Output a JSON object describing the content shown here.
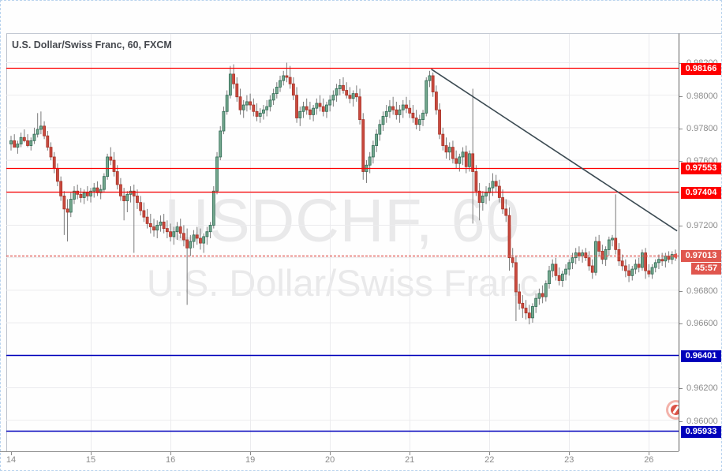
{
  "chart": {
    "title": "U.S. Dollar/Swiss Franc, 60, FXCM",
    "watermark_line1": "USDCHF, 60",
    "watermark_line2": "U.S. Dollar/Swiss Franc",
    "symbol": "USDCHF",
    "timeframe": "60",
    "provider": "FXCM"
  },
  "colors": {
    "bull_fill": "#74a78d",
    "bull_stroke": "#2e6a54",
    "bear_fill": "#c94a3f",
    "bear_stroke": "#a83327",
    "wick": "#7a7a7a",
    "grid": "#ebebee",
    "resistance": "#fe0000",
    "support": "#0000bb",
    "current": "#e0564e",
    "trendline": "#3b4a52",
    "watermark": "#e9e9ea"
  },
  "chart_data": {
    "type": "candlestick",
    "title": "U.S. Dollar/Swiss Franc, 60, FXCM",
    "price_scale": 0.0001,
    "y_axis": {
      "price_top": 0.98382,
      "price_bottom": 0.95809,
      "grid_step": 0.002,
      "ticks": [
        {
          "price": 0.982,
          "label": "0.98200"
        },
        {
          "price": 0.98,
          "label": "0.98000"
        },
        {
          "price": 0.978,
          "label": "0.97800"
        },
        {
          "price": 0.976,
          "label": "0.97600"
        },
        {
          "price": 0.972,
          "label": "0.97200"
        },
        {
          "price": 0.968,
          "label": "0.96800"
        },
        {
          "price": 0.966,
          "label": "0.96600"
        },
        {
          "price": 0.962,
          "label": "0.96200"
        },
        {
          "price": 0.96,
          "label": "0.96000"
        }
      ]
    },
    "x_axis": {
      "day_labels": [
        {
          "text": "14",
          "start": 0
        },
        {
          "text": "15",
          "start": 24
        },
        {
          "text": "16",
          "start": 48
        },
        {
          "text": "19",
          "start": 72
        },
        {
          "text": "20",
          "start": 96
        },
        {
          "text": "21",
          "start": 120
        },
        {
          "text": "22",
          "start": 144
        },
        {
          "text": "23",
          "start": 168
        },
        {
          "text": "26",
          "start": 192
        }
      ]
    },
    "levels": [
      {
        "price": 0.98166,
        "label": "0.98166",
        "type": "resistance",
        "line": "solid"
      },
      {
        "price": 0.97553,
        "label": "0.97553",
        "type": "resistance",
        "line": "solid"
      },
      {
        "price": 0.97404,
        "label": "0.97404",
        "type": "resistance",
        "line": "solid"
      },
      {
        "price": 0.97013,
        "label": "0.97013",
        "type": "current_price",
        "line": "dotted",
        "countdown": "45:57"
      },
      {
        "price": 0.96401,
        "label": "0.96401",
        "type": "support",
        "line": "solid"
      },
      {
        "price": 0.95933,
        "label": "0.95933",
        "type": "support",
        "line": "solid"
      }
    ],
    "trendline": {
      "from": {
        "index": 126.5,
        "price": 0.9816
      },
      "to": {
        "index": 200.5,
        "price": 0.97165
      }
    },
    "candles": [
      [
        9770,
        9775,
        9766,
        9772
      ],
      [
        9772,
        9776,
        9769,
        9768
      ],
      [
        9768,
        9772,
        9764,
        9770
      ],
      [
        9770,
        9777,
        9768,
        9774
      ],
      [
        9774,
        9779,
        9771,
        9772
      ],
      [
        9772,
        9776,
        9768,
        9769
      ],
      [
        9769,
        9774,
        9766,
        9772
      ],
      [
        9772,
        9780,
        9770,
        9776
      ],
      [
        9776,
        9789,
        9774,
        9779
      ],
      [
        9779,
        9790,
        9776,
        9781
      ],
      [
        9781,
        9784,
        9773,
        9775
      ],
      [
        9775,
        9778,
        9766,
        9768
      ],
      [
        9768,
        9771,
        9760,
        9762
      ],
      [
        9762,
        9765,
        9752,
        9755
      ],
      [
        9755,
        9758,
        9744,
        9747
      ],
      [
        9747,
        9750,
        9735,
        9738
      ],
      [
        9738,
        9741,
        9714,
        9730
      ],
      [
        9730,
        9736,
        9710,
        9728
      ],
      [
        9728,
        9740,
        9725,
        9736
      ],
      [
        9736,
        9744,
        9733,
        9741
      ],
      [
        9741,
        9745,
        9736,
        9739
      ],
      [
        9739,
        9743,
        9734,
        9737
      ],
      [
        9737,
        9742,
        9733,
        9740
      ],
      [
        9740,
        9744,
        9735,
        9738
      ],
      [
        9738,
        9743,
        9734,
        9741
      ],
      [
        9741,
        9746,
        9737,
        9743
      ],
      [
        9743,
        9747,
        9738,
        9740
      ],
      [
        9740,
        9745,
        9736,
        9742
      ],
      [
        9742,
        9752,
        9740,
        9750
      ],
      [
        9750,
        9764,
        9748,
        9762
      ],
      [
        9762,
        9768,
        9757,
        9760
      ],
      [
        9760,
        9765,
        9750,
        9753
      ],
      [
        9753,
        9757,
        9742,
        9745
      ],
      [
        9745,
        9749,
        9735,
        9738
      ],
      [
        9738,
        9743,
        9723,
        9735
      ],
      [
        9735,
        9741,
        9728,
        9739
      ],
      [
        9739,
        9744,
        9734,
        9741
      ],
      [
        9741,
        9745,
        9703,
        9738
      ],
      [
        9738,
        9742,
        9730,
        9734
      ],
      [
        9734,
        9738,
        9726,
        9729
      ],
      [
        9729,
        9734,
        9722,
        9725
      ],
      [
        9725,
        9730,
        9718,
        9721
      ],
      [
        9721,
        9727,
        9715,
        9719
      ],
      [
        9719,
        9724,
        9713,
        9717
      ],
      [
        9717,
        9723,
        9712,
        9720
      ],
      [
        9720,
        9726,
        9716,
        9722
      ],
      [
        9722,
        9727,
        9715,
        9718
      ],
      [
        9718,
        9723,
        9712,
        9716
      ],
      [
        9716,
        9721,
        9710,
        9713
      ],
      [
        9713,
        9719,
        9708,
        9716
      ],
      [
        9716,
        9722,
        9711,
        9719
      ],
      [
        9719,
        9724,
        9712,
        9715
      ],
      [
        9715,
        9720,
        9707,
        9711
      ],
      [
        9711,
        9718,
        9671,
        9706
      ],
      [
        9706,
        9714,
        9701,
        9710
      ],
      [
        9710,
        9717,
        9706,
        9714
      ],
      [
        9714,
        9719,
        9708,
        9712
      ],
      [
        9712,
        9718,
        9705,
        9709
      ],
      [
        9709,
        9715,
        9703,
        9713
      ],
      [
        9713,
        9719,
        9708,
        9716
      ],
      [
        9716,
        9722,
        9712,
        9720
      ],
      [
        9720,
        9744,
        9718,
        9741
      ],
      [
        9741,
        9765,
        9739,
        9762
      ],
      [
        9762,
        9781,
        9760,
        9778
      ],
      [
        9778,
        9793,
        9776,
        9790
      ],
      [
        9790,
        9803,
        9788,
        9800
      ],
      [
        9800,
        9818,
        9798,
        9813
      ],
      [
        9813,
        9819,
        9804,
        9807
      ],
      [
        9807,
        9811,
        9796,
        9799
      ],
      [
        9799,
        9804,
        9788,
        9791
      ],
      [
        9791,
        9797,
        9786,
        9794
      ],
      [
        9794,
        9800,
        9790,
        9796
      ],
      [
        9796,
        9801,
        9791,
        9794
      ],
      [
        9794,
        9798,
        9787,
        9790
      ],
      [
        9790,
        9795,
        9784,
        9787
      ],
      [
        9787,
        9792,
        9783,
        9789
      ],
      [
        9789,
        9794,
        9785,
        9791
      ],
      [
        9791,
        9797,
        9787,
        9793
      ],
      [
        9793,
        9800,
        9790,
        9797
      ],
      [
        9797,
        9804,
        9794,
        9801
      ],
      [
        9801,
        9808,
        9798,
        9805
      ],
      [
        9805,
        9812,
        9802,
        9809
      ],
      [
        9809,
        9815,
        9806,
        9812
      ],
      [
        9812,
        9820,
        9808,
        9811
      ],
      [
        9811,
        9818,
        9804,
        9807
      ],
      [
        9807,
        9811,
        9797,
        9800
      ],
      [
        9800,
        9805,
        9783,
        9786
      ],
      [
        9786,
        9793,
        9781,
        9790
      ],
      [
        9790,
        9796,
        9786,
        9793
      ],
      [
        9793,
        9798,
        9788,
        9791
      ],
      [
        9791,
        9796,
        9785,
        9788
      ],
      [
        9788,
        9794,
        9784,
        9792
      ],
      [
        9792,
        9798,
        9788,
        9795
      ],
      [
        9795,
        9800,
        9790,
        9793
      ],
      [
        9793,
        9798,
        9787,
        9790
      ],
      [
        9790,
        9796,
        9786,
        9794
      ],
      [
        9794,
        9800,
        9790,
        9797
      ],
      [
        9797,
        9803,
        9793,
        9800
      ],
      [
        9800,
        9807,
        9796,
        9804
      ],
      [
        9804,
        9810,
        9800,
        9806
      ],
      [
        9806,
        9811,
        9801,
        9803
      ],
      [
        9803,
        9808,
        9798,
        9800
      ],
      [
        9800,
        9805,
        9795,
        9798
      ],
      [
        9798,
        9803,
        9793,
        9801
      ],
      [
        9801,
        9806,
        9796,
        9799
      ],
      [
        9799,
        9804,
        9782,
        9785
      ],
      [
        9785,
        9789,
        9748,
        9753
      ],
      [
        9753,
        9760,
        9746,
        9757
      ],
      [
        9757,
        9765,
        9752,
        9762
      ],
      [
        9762,
        9772,
        9758,
        9769
      ],
      [
        9769,
        9779,
        9765,
        9776
      ],
      [
        9776,
        9785,
        9772,
        9782
      ],
      [
        9782,
        9790,
        9778,
        9787
      ],
      [
        9787,
        9794,
        9783,
        9790
      ],
      [
        9790,
        9797,
        9786,
        9793
      ],
      [
        9793,
        9799,
        9788,
        9791
      ],
      [
        9791,
        9796,
        9785,
        9788
      ],
      [
        9788,
        9794,
        9783,
        9791
      ],
      [
        9791,
        9797,
        9786,
        9794
      ],
      [
        9794,
        9799,
        9789,
        9792
      ],
      [
        9792,
        9797,
        9786,
        9789
      ],
      [
        9789,
        9794,
        9783,
        9786
      ],
      [
        9786,
        9791,
        9779,
        9782
      ],
      [
        9782,
        9788,
        9778,
        9785
      ],
      [
        9785,
        9791,
        9781,
        9789
      ],
      [
        9789,
        9811,
        9787,
        9809
      ],
      [
        9809,
        9815,
        9805,
        9812
      ],
      [
        9812,
        9814,
        9799,
        9802
      ],
      [
        9802,
        9806,
        9788,
        9791
      ],
      [
        9791,
        9795,
        9773,
        9776
      ],
      [
        9776,
        9780,
        9766,
        9769
      ],
      [
        9769,
        9774,
        9761,
        9765
      ],
      [
        9765,
        9771,
        9760,
        9768
      ],
      [
        9768,
        9772,
        9758,
        9761
      ],
      [
        9761,
        9766,
        9755,
        9758
      ],
      [
        9758,
        9764,
        9753,
        9762
      ],
      [
        9762,
        9768,
        9757,
        9765
      ],
      [
        9765,
        9769,
        9752,
        9756
      ],
      [
        9756,
        9766,
        9753,
        9764
      ],
      [
        9764,
        9804,
        9721,
        9753
      ],
      [
        9753,
        9757,
        9738,
        9741
      ],
      [
        9741,
        9746,
        9723,
        9734
      ],
      [
        9734,
        9741,
        9729,
        9738
      ],
      [
        9738,
        9744,
        9733,
        9740
      ],
      [
        9740,
        9746,
        9735,
        9743
      ],
      [
        9743,
        9752,
        9738,
        9747
      ],
      [
        9747,
        9751,
        9740,
        9744
      ],
      [
        9744,
        9748,
        9734,
        9737
      ],
      [
        9737,
        9742,
        9727,
        9730
      ],
      [
        9730,
        9736,
        9722,
        9726
      ],
      [
        9726,
        9731,
        9692,
        9700
      ],
      [
        9700,
        9706,
        9694,
        9697
      ],
      [
        9697,
        9701,
        9661,
        9679
      ],
      [
        9679,
        9684,
        9668,
        9672
      ],
      [
        9672,
        9677,
        9663,
        9669
      ],
      [
        9669,
        9674,
        9662,
        9666
      ],
      [
        9666,
        9671,
        9659,
        9663
      ],
      [
        9663,
        9672,
        9660,
        9670
      ],
      [
        9670,
        9678,
        9666,
        9675
      ],
      [
        9675,
        9681,
        9671,
        9678
      ],
      [
        9678,
        9683,
        9672,
        9676
      ],
      [
        9676,
        9686,
        9673,
        9684
      ],
      [
        9684,
        9695,
        9681,
        9692
      ],
      [
        9692,
        9699,
        9688,
        9696
      ],
      [
        9696,
        9700,
        9686,
        9689
      ],
      [
        9689,
        9694,
        9683,
        9686
      ],
      [
        9686,
        9692,
        9682,
        9690
      ],
      [
        9690,
        9696,
        9686,
        9693
      ],
      [
        9693,
        9699,
        9689,
        9697
      ],
      [
        9697,
        9703,
        9693,
        9700
      ],
      [
        9700,
        9706,
        9696,
        9703
      ],
      [
        9703,
        9707,
        9698,
        9701
      ],
      [
        9701,
        9705,
        9697,
        9703
      ],
      [
        9703,
        9706,
        9698,
        9700
      ],
      [
        9700,
        9704,
        9692,
        9695
      ],
      [
        9695,
        9699,
        9687,
        9691
      ],
      [
        9691,
        9713,
        9689,
        9710
      ],
      [
        9710,
        9714,
        9701,
        9704
      ],
      [
        9704,
        9708,
        9696,
        9699
      ],
      [
        9699,
        9707,
        9695,
        9705
      ],
      [
        9705,
        9713,
        9701,
        9711
      ],
      [
        9711,
        9714,
        9707,
        9712
      ],
      [
        9712,
        9739,
        9702,
        9705
      ],
      [
        9705,
        9709,
        9695,
        9698
      ],
      [
        9698,
        9702,
        9692,
        9695
      ],
      [
        9695,
        9699,
        9688,
        9692
      ],
      [
        9692,
        9696,
        9685,
        9689
      ],
      [
        9689,
        9695,
        9686,
        9693
      ],
      [
        9693,
        9699,
        9690,
        9696
      ],
      [
        9696,
        9700,
        9691,
        9694
      ],
      [
        9694,
        9705,
        9692,
        9703
      ],
      [
        9703,
        9706,
        9687,
        9692
      ],
      [
        9692,
        9696,
        9688,
        9690
      ],
      [
        9690,
        9696,
        9687,
        9694
      ],
      [
        9694,
        9699,
        9691,
        9697
      ],
      [
        9697,
        9702,
        9693,
        9699
      ],
      [
        9699,
        9703,
        9695,
        9698
      ],
      [
        9698,
        9703,
        9694,
        9701
      ],
      [
        9701,
        9704,
        9697,
        9699
      ],
      [
        9699,
        9704,
        9696,
        9702
      ],
      [
        9702,
        9705,
        9698,
        9701
      ]
    ]
  }
}
